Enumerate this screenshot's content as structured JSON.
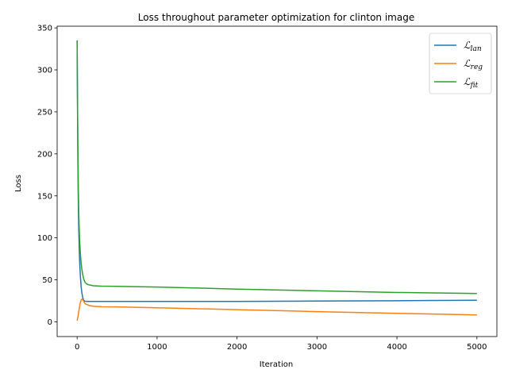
{
  "chart_data": {
    "type": "line",
    "title": "Loss throughout parameter optimization for clinton image",
    "xlabel": "Iteration",
    "ylabel": "Loss",
    "xlim": [
      -250,
      5250
    ],
    "ylim": [
      -17.5,
      352
    ],
    "xticks": [
      0,
      1000,
      2000,
      3000,
      4000,
      5000
    ],
    "yticks": [
      0,
      50,
      100,
      150,
      200,
      250,
      300,
      350
    ],
    "grid": false,
    "legend_position": "top-right",
    "series": [
      {
        "name": "ℒ_lan",
        "label_main": "ℒ",
        "label_sub": "lan",
        "color": "#1f77b4",
        "x": [
          0,
          5,
          10,
          15,
          20,
          30,
          40,
          50,
          60,
          70,
          80,
          90,
          100,
          120,
          150,
          200,
          500,
          1000,
          2000,
          3000,
          4000,
          5000
        ],
        "y": [
          335,
          250,
          185,
          140,
          110,
          75,
          55,
          42,
          34,
          29,
          26,
          25,
          24.5,
          24.3,
          24.3,
          24.3,
          24.3,
          24.3,
          24.3,
          24.8,
          25.2,
          25.7
        ]
      },
      {
        "name": "ℒ_reg",
        "label_main": "ℒ",
        "label_sub": "reg",
        "color": "#ff7f0e",
        "x": [
          0,
          10,
          20,
          30,
          40,
          50,
          60,
          70,
          80,
          90,
          100,
          150,
          200,
          300,
          500,
          1000,
          2000,
          3000,
          4000,
          5000
        ],
        "y": [
          1.5,
          6,
          12,
          18,
          23,
          26,
          27,
          26.5,
          25,
          23,
          21.5,
          19.5,
          18.5,
          18,
          17.8,
          16.8,
          14.5,
          12.2,
          10.2,
          8.2
        ]
      },
      {
        "name": "ℒ_fit",
        "label_main": "ℒ",
        "label_sub": "fit",
        "color": "#2ca02c",
        "x": [
          0,
          5,
          10,
          15,
          20,
          30,
          40,
          50,
          60,
          70,
          80,
          90,
          100,
          120,
          150,
          200,
          300,
          500,
          1000,
          1500,
          2000,
          3000,
          4000,
          5000
        ],
        "y": [
          335,
          260,
          200,
          160,
          130,
          100,
          82,
          70,
          62,
          56,
          52,
          49,
          47,
          45,
          44,
          43,
          42.5,
          42.3,
          41.5,
          40.3,
          39,
          37,
          35,
          33.8
        ]
      }
    ]
  }
}
